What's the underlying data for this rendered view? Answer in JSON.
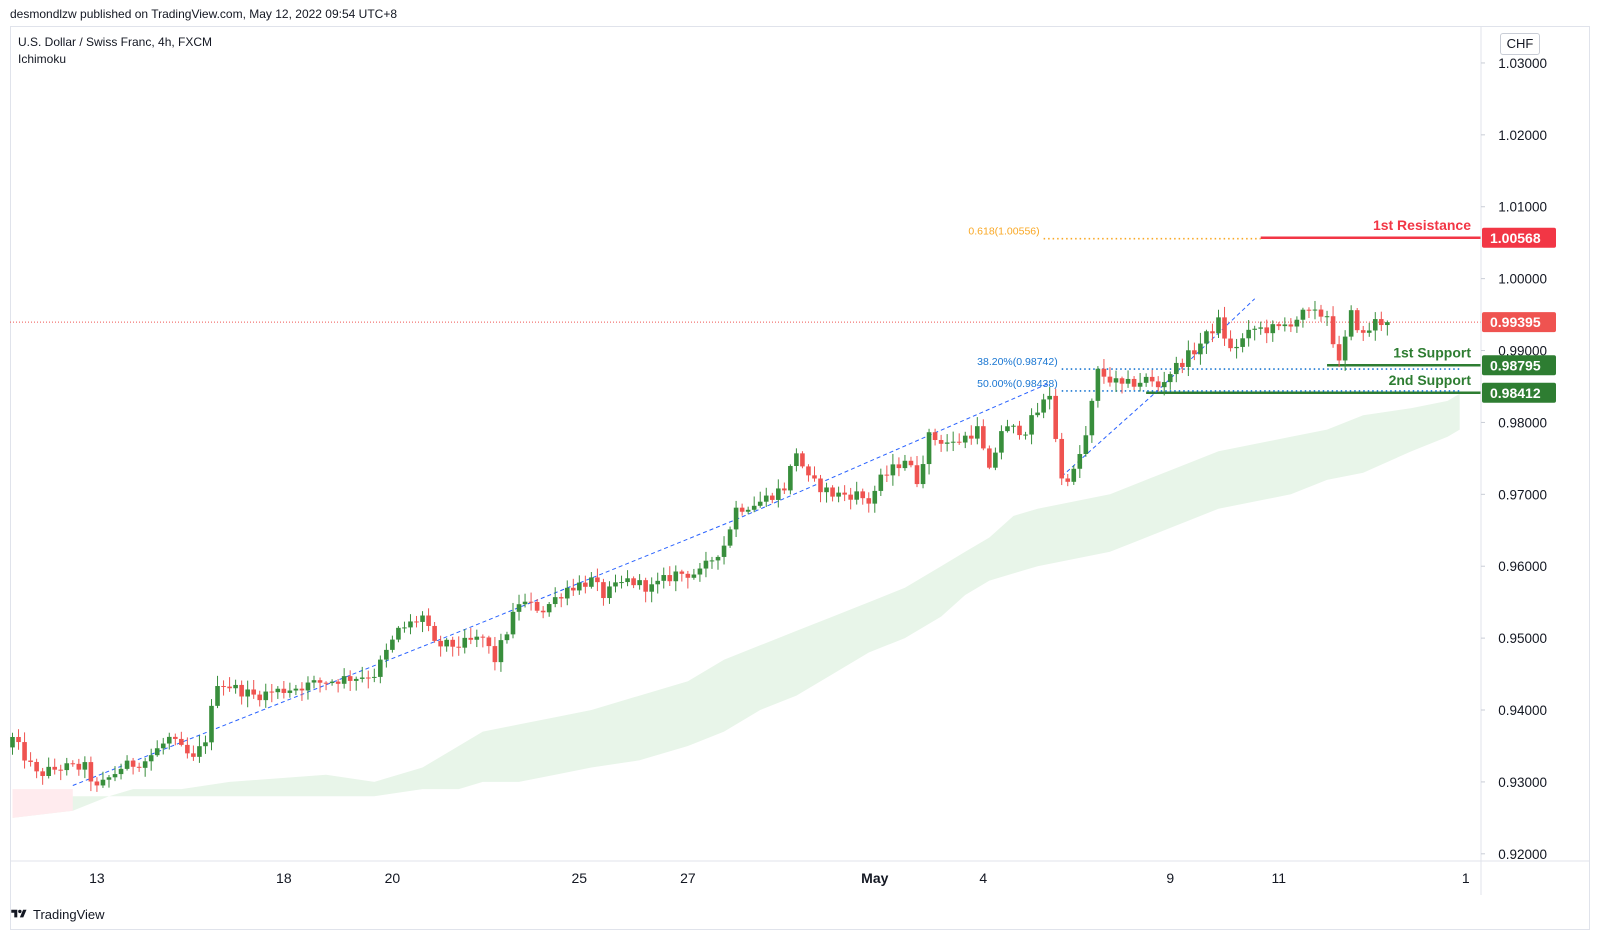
{
  "header": {
    "publish_line": "desmondlzw published on TradingView.com, May 12, 2022 09:54 UTC+8",
    "symbol_title": "U.S. Dollar / Swiss Franc, 4h, FXCM",
    "indicator": "Ichimoku",
    "currency": "CHF"
  },
  "footer": {
    "brand": "TradingView",
    "logo_icon": "tradingview-logo-icon"
  },
  "colors": {
    "up": "#388e3c",
    "down": "#ef5350",
    "cloud": "#e8f5e9",
    "cloud_bear": "#ffebee",
    "resistance": "#f23645",
    "support": "#2e7d32",
    "fib_618": "#f9a825",
    "fib_lines": "#1976d2",
    "trend": "#2962ff",
    "price_line": "#ef5350"
  },
  "chart_data": {
    "type": "candlestick",
    "title": "U.S. Dollar / Swiss Franc, 4h, FXCM",
    "ylim": [
      0.919,
      1.035
    ],
    "y_ticks": [
      "1.03000",
      "1.02000",
      "1.01000",
      "1.00000",
      "0.99000",
      "0.98000",
      "0.97000",
      "0.96000",
      "0.95000",
      "0.94000",
      "0.93000",
      "0.92000"
    ],
    "x_ticks": [
      {
        "label": "13",
        "bar": 14
      },
      {
        "label": "18",
        "bar": 45
      },
      {
        "label": "20",
        "bar": 63
      },
      {
        "label": "25",
        "bar": 94
      },
      {
        "label": "27",
        "bar": 112
      },
      {
        "label": "May",
        "bar": 143,
        "bold": true
      },
      {
        "label": "4",
        "bar": 161
      },
      {
        "label": "9",
        "bar": 192
      },
      {
        "label": "11",
        "bar": 210
      },
      {
        "label": "1",
        "bar": 241
      }
    ],
    "bar_count": 243,
    "anchors": [
      [
        0,
        0.936
      ],
      [
        4,
        0.931
      ],
      [
        8,
        0.932
      ],
      [
        12,
        0.932
      ],
      [
        14,
        0.929
      ],
      [
        18,
        0.932
      ],
      [
        22,
        0.933
      ],
      [
        26,
        0.936
      ],
      [
        30,
        0.933
      ],
      [
        32,
        0.936
      ],
      [
        34,
        0.944
      ],
      [
        40,
        0.942
      ],
      [
        46,
        0.943
      ],
      [
        52,
        0.944
      ],
      [
        60,
        0.945
      ],
      [
        64,
        0.951
      ],
      [
        68,
        0.953
      ],
      [
        70,
        0.949
      ],
      [
        74,
        0.949
      ],
      [
        78,
        0.95
      ],
      [
        80,
        0.947
      ],
      [
        84,
        0.955
      ],
      [
        88,
        0.954
      ],
      [
        92,
        0.957
      ],
      [
        96,
        0.958
      ],
      [
        98,
        0.956
      ],
      [
        102,
        0.958
      ],
      [
        106,
        0.957
      ],
      [
        110,
        0.959
      ],
      [
        114,
        0.959
      ],
      [
        118,
        0.963
      ],
      [
        120,
        0.968
      ],
      [
        124,
        0.969
      ],
      [
        128,
        0.971
      ],
      [
        130,
        0.976
      ],
      [
        132,
        0.972
      ],
      [
        136,
        0.97
      ],
      [
        140,
        0.97
      ],
      [
        142,
        0.969
      ],
      [
        144,
        0.972
      ],
      [
        148,
        0.975
      ],
      [
        150,
        0.972
      ],
      [
        152,
        0.978
      ],
      [
        156,
        0.977
      ],
      [
        160,
        0.979
      ],
      [
        162,
        0.973
      ],
      [
        164,
        0.979
      ],
      [
        168,
        0.979
      ],
      [
        172,
        0.984
      ],
      [
        174,
        0.972
      ],
      [
        176,
        0.973
      ],
      [
        178,
        0.978
      ],
      [
        180,
        0.987
      ],
      [
        184,
        0.985
      ],
      [
        188,
        0.986
      ],
      [
        190,
        0.985
      ],
      [
        192,
        0.987
      ],
      [
        196,
        0.99
      ],
      [
        200,
        0.994
      ],
      [
        202,
        0.99
      ],
      [
        206,
        0.993
      ],
      [
        210,
        0.993
      ],
      [
        214,
        0.995
      ],
      [
        218,
        0.995
      ],
      [
        220,
        0.988
      ],
      [
        222,
        0.995
      ],
      [
        224,
        0.992
      ],
      [
        226,
        0.994
      ],
      [
        228,
        0.994
      ]
    ],
    "cloud_upper": [
      [
        0,
        0.928
      ],
      [
        10,
        0.928
      ],
      [
        16,
        0.928
      ],
      [
        20,
        0.929
      ],
      [
        28,
        0.929
      ],
      [
        36,
        0.93
      ],
      [
        52,
        0.931
      ],
      [
        60,
        0.93
      ],
      [
        68,
        0.932
      ],
      [
        74,
        0.935
      ],
      [
        78,
        0.937
      ],
      [
        84,
        0.938
      ],
      [
        90,
        0.939
      ],
      [
        96,
        0.94
      ],
      [
        104,
        0.942
      ],
      [
        112,
        0.944
      ],
      [
        118,
        0.947
      ],
      [
        124,
        0.949
      ],
      [
        130,
        0.951
      ],
      [
        136,
        0.953
      ],
      [
        142,
        0.955
      ],
      [
        148,
        0.957
      ],
      [
        154,
        0.96
      ],
      [
        158,
        0.962
      ],
      [
        162,
        0.964
      ],
      [
        166,
        0.967
      ],
      [
        170,
        0.968
      ],
      [
        176,
        0.969
      ],
      [
        182,
        0.97
      ],
      [
        188,
        0.972
      ],
      [
        194,
        0.974
      ],
      [
        200,
        0.976
      ],
      [
        206,
        0.977
      ],
      [
        212,
        0.978
      ],
      [
        218,
        0.979
      ],
      [
        224,
        0.981
      ],
      [
        232,
        0.982
      ],
      [
        238,
        0.983
      ],
      [
        240,
        0.984
      ]
    ],
    "cloud_lower": [
      [
        0,
        0.925
      ],
      [
        10,
        0.926
      ],
      [
        16,
        0.928
      ],
      [
        20,
        0.928
      ],
      [
        28,
        0.928
      ],
      [
        36,
        0.928
      ],
      [
        52,
        0.928
      ],
      [
        60,
        0.928
      ],
      [
        68,
        0.929
      ],
      [
        74,
        0.929
      ],
      [
        78,
        0.93
      ],
      [
        84,
        0.93
      ],
      [
        90,
        0.931
      ],
      [
        96,
        0.932
      ],
      [
        104,
        0.933
      ],
      [
        112,
        0.935
      ],
      [
        118,
        0.937
      ],
      [
        124,
        0.94
      ],
      [
        130,
        0.942
      ],
      [
        136,
        0.945
      ],
      [
        142,
        0.948
      ],
      [
        148,
        0.95
      ],
      [
        154,
        0.953
      ],
      [
        158,
        0.956
      ],
      [
        162,
        0.958
      ],
      [
        166,
        0.959
      ],
      [
        170,
        0.96
      ],
      [
        176,
        0.961
      ],
      [
        182,
        0.962
      ],
      [
        188,
        0.964
      ],
      [
        194,
        0.966
      ],
      [
        200,
        0.968
      ],
      [
        206,
        0.969
      ],
      [
        212,
        0.97
      ],
      [
        218,
        0.972
      ],
      [
        224,
        0.973
      ],
      [
        232,
        0.976
      ],
      [
        238,
        0.978
      ],
      [
        240,
        0.979
      ]
    ],
    "cloud_bear_until": 13,
    "trendlines": [
      [
        [
          10,
          0.9295
        ],
        [
          70,
          0.9495
        ],
        [
          120,
          0.9665
        ],
        [
          172,
          0.9855
        ]
      ],
      [
        [
          174,
          0.9725
        ],
        [
          190,
          0.9845
        ],
        [
          206,
          0.9972
        ]
      ]
    ],
    "current_price": {
      "value": 0.99395,
      "label": "0.99395"
    },
    "levels": [
      {
        "name": "1st Resistance",
        "value": 1.00568,
        "label": "1.00568",
        "kind": "resistance",
        "start_bar": 207
      },
      {
        "name": "1st Support",
        "value": 0.98795,
        "label": "0.98795",
        "kind": "support",
        "start_bar": 218
      },
      {
        "name": "2nd Support",
        "value": 0.98412,
        "label": "0.98412",
        "kind": "support",
        "start_bar": 188
      }
    ],
    "fib": [
      {
        "label": "0.618(1.00556)",
        "value": 1.00556,
        "start_bar": 171,
        "end_bar": 207,
        "color_key": "fib_618"
      },
      {
        "label": "38.20%(0.98742)",
        "value": 0.98742,
        "start_bar": 174,
        "end_bar": 240,
        "color_key": "fib_lines"
      },
      {
        "label": "50.00%(0.98438)",
        "value": 0.98438,
        "start_bar": 174,
        "end_bar": 240,
        "color_key": "fib_lines"
      }
    ]
  }
}
